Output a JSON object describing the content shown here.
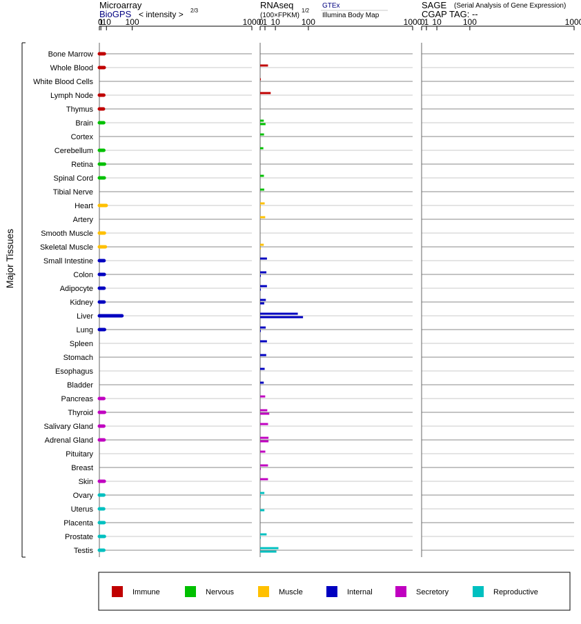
{
  "chart_data": {
    "type": "bar",
    "y_group_label": "Major Tissues",
    "tissues": [
      {
        "name": "Bone Marrow",
        "group": "immune"
      },
      {
        "name": "Whole Blood",
        "group": "immune"
      },
      {
        "name": "White Blood Cells",
        "group": "immune"
      },
      {
        "name": "Lymph Node",
        "group": "immune"
      },
      {
        "name": "Thymus",
        "group": "immune"
      },
      {
        "name": "Brain",
        "group": "nervous"
      },
      {
        "name": "Cortex",
        "group": "nervous"
      },
      {
        "name": "Cerebellum",
        "group": "nervous"
      },
      {
        "name": "Retina",
        "group": "nervous"
      },
      {
        "name": "Spinal Cord",
        "group": "nervous"
      },
      {
        "name": "Tibial Nerve",
        "group": "nervous"
      },
      {
        "name": "Heart",
        "group": "muscle"
      },
      {
        "name": "Artery",
        "group": "muscle"
      },
      {
        "name": "Smooth Muscle",
        "group": "muscle"
      },
      {
        "name": "Skeletal Muscle",
        "group": "muscle"
      },
      {
        "name": "Small Intestine",
        "group": "internal"
      },
      {
        "name": "Colon",
        "group": "internal"
      },
      {
        "name": "Adipocyte",
        "group": "internal"
      },
      {
        "name": "Kidney",
        "group": "internal"
      },
      {
        "name": "Liver",
        "group": "internal"
      },
      {
        "name": "Lung",
        "group": "internal"
      },
      {
        "name": "Spleen",
        "group": "internal"
      },
      {
        "name": "Stomach",
        "group": "internal"
      },
      {
        "name": "Esophagus",
        "group": "internal"
      },
      {
        "name": "Bladder",
        "group": "internal"
      },
      {
        "name": "Pancreas",
        "group": "secretory"
      },
      {
        "name": "Thyroid",
        "group": "secretory"
      },
      {
        "name": "Salivary Gland",
        "group": "secretory"
      },
      {
        "name": "Adrenal Gland",
        "group": "secretory"
      },
      {
        "name": "Pituitary",
        "group": "secretory"
      },
      {
        "name": "Breast",
        "group": "secretory"
      },
      {
        "name": "Skin",
        "group": "secretory"
      },
      {
        "name": "Ovary",
        "group": "reproductive"
      },
      {
        "name": "Uterus",
        "group": "reproductive"
      },
      {
        "name": "Placenta",
        "group": "reproductive"
      },
      {
        "name": "Prostate",
        "group": "reproductive"
      },
      {
        "name": "Testis",
        "group": "reproductive"
      }
    ],
    "groups": {
      "immune": {
        "label": "Immune",
        "color": "#c00000"
      },
      "nervous": {
        "label": "Nervous",
        "color": "#00c000"
      },
      "muscle": {
        "label": "Muscle",
        "color": "#ffc000"
      },
      "internal": {
        "label": "Internal",
        "color": "#0000c0"
      },
      "secretory": {
        "label": "Secretory",
        "color": "#c000c0"
      },
      "reproductive": {
        "label": "Reproductive",
        "color": "#00c0c0"
      }
    },
    "panels": [
      {
        "id": "microarray",
        "title": "Microarray",
        "source_label": "BioGPS",
        "scale_label": "< intensity >",
        "scale_exponent": "2/3",
        "axis_ticks": [
          "0",
          "1",
          "10",
          "100",
          "1000"
        ],
        "ticks": [
          0,
          1,
          10,
          100,
          1000
        ],
        "transform": "power_2_3",
        "series": [
          {
            "values": [
              5.9,
              5.7,
              null,
              5.0,
              4.4,
              4.8,
              null,
              5.0,
              6.2,
              5.8,
              null,
              9.5,
              null,
              6.0,
              7.8,
              5.4,
              5.8,
              5.4,
              5.4,
              57,
              6.2,
              null,
              null,
              null,
              null,
              5.0,
              6.2,
              5.0,
              5.4,
              null,
              null,
              5.8,
              5.0,
              4.8,
              5.4,
              6.0,
              5.0
            ]
          }
        ]
      },
      {
        "id": "rnaseq",
        "title": "RNAseq",
        "scale_label": "(100×FPKM)",
        "scale_exponent": "1/2",
        "source_primary": "GTEx",
        "source_secondary": "Illumina Body Map",
        "axis_ticks": [
          "0",
          "1",
          "10",
          "100",
          "1000"
        ],
        "ticks": [
          0,
          1,
          10,
          100,
          1000
        ],
        "transform": "sqrt_log",
        "series": [
          {
            "name": "GTEx",
            "values": [
              null,
              2.66,
              0.0044,
              4.8,
              null,
              0.57,
              0.65,
              0.44,
              null,
              0.62,
              0.72,
              0.88,
              1.1,
              null,
              0.56,
              2.0,
              1.67,
              2.0,
              1.4,
              61,
              1.33,
              2.0,
              1.6,
              0.88,
              0.56,
              1.1,
              2.2,
              2.7,
              3.0,
              1.15,
              2.66,
              2.66,
              0.77,
              null,
              null,
              1.8,
              14.4
            ]
          },
          {
            "name": "Illumina Body Map",
            "values": [
              null,
              null,
              null,
              null,
              null,
              1.25,
              null,
              null,
              null,
              null,
              null,
              0.0044,
              null,
              null,
              0.0044,
              null,
              0.0044,
              0.0044,
              0.72,
              79,
              0.0044,
              null,
              null,
              null,
              null,
              null,
              3.6,
              null,
              3.0,
              null,
              0.0044,
              null,
              0.0044,
              0.78,
              null,
              0.0044,
              11.4
            ]
          }
        ]
      },
      {
        "id": "sage",
        "title": "SAGE",
        "subtitle": "(Serial Analysis of Gene Expression)",
        "tag_label": "CGAP  TAG:  --",
        "axis_ticks": [
          "0",
          "1",
          "10",
          "100",
          "1000"
        ],
        "ticks": [
          0,
          1,
          10,
          100,
          1000
        ],
        "transform": "sqrt_log",
        "series": []
      }
    ]
  }
}
